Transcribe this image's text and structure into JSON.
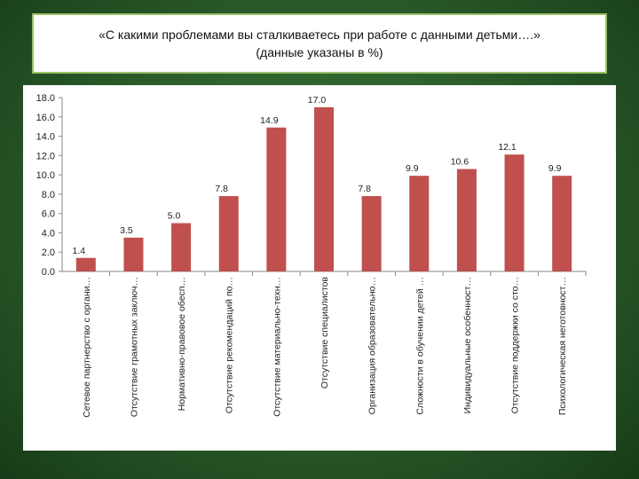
{
  "header": {
    "title_line1": "«С какими проблемами вы сталкиваетесь при работе с данными детьми….»",
    "title_line2": "(данные указаны в %)"
  },
  "chart_data": {
    "type": "bar",
    "title": "«С какими проблемами вы сталкиваетесь при работе с данными детьми….» (данные указаны в %)",
    "xlabel": "",
    "ylabel": "",
    "ylim": [
      0,
      18
    ],
    "yticks": [
      "0.0",
      "2.0",
      "4.0",
      "6.0",
      "8.0",
      "10.0",
      "12.0",
      "14.0",
      "16.0",
      "18.0"
    ],
    "grid": false,
    "legend": "none",
    "bar_color": "#c0504d",
    "categories": [
      "Сетевое партнерство с органи…",
      "Отсутствие грамотных заключ…",
      "Нормативно-правовое обесп…",
      "Отсутствие рекомендаций по…",
      "Отсутствие материально-техн…",
      "Отсутствие специалистов",
      "Организация образовательно…",
      "Сложности в обучении детей …",
      "Индивидуальные особенност…",
      "Отсутствие поддержки со сто…",
      "Психологическая неготовност…"
    ],
    "values": [
      1.4,
      3.5,
      5.0,
      7.8,
      14.9,
      17.0,
      7.8,
      9.9,
      10.6,
      12.1,
      9.9
    ],
    "value_labels": [
      "1.4",
      "3.5",
      "5.0",
      "7.8",
      "14.9",
      "17.0",
      "7.8",
      "9.9",
      "10.6",
      "12.1",
      "9.9"
    ]
  }
}
